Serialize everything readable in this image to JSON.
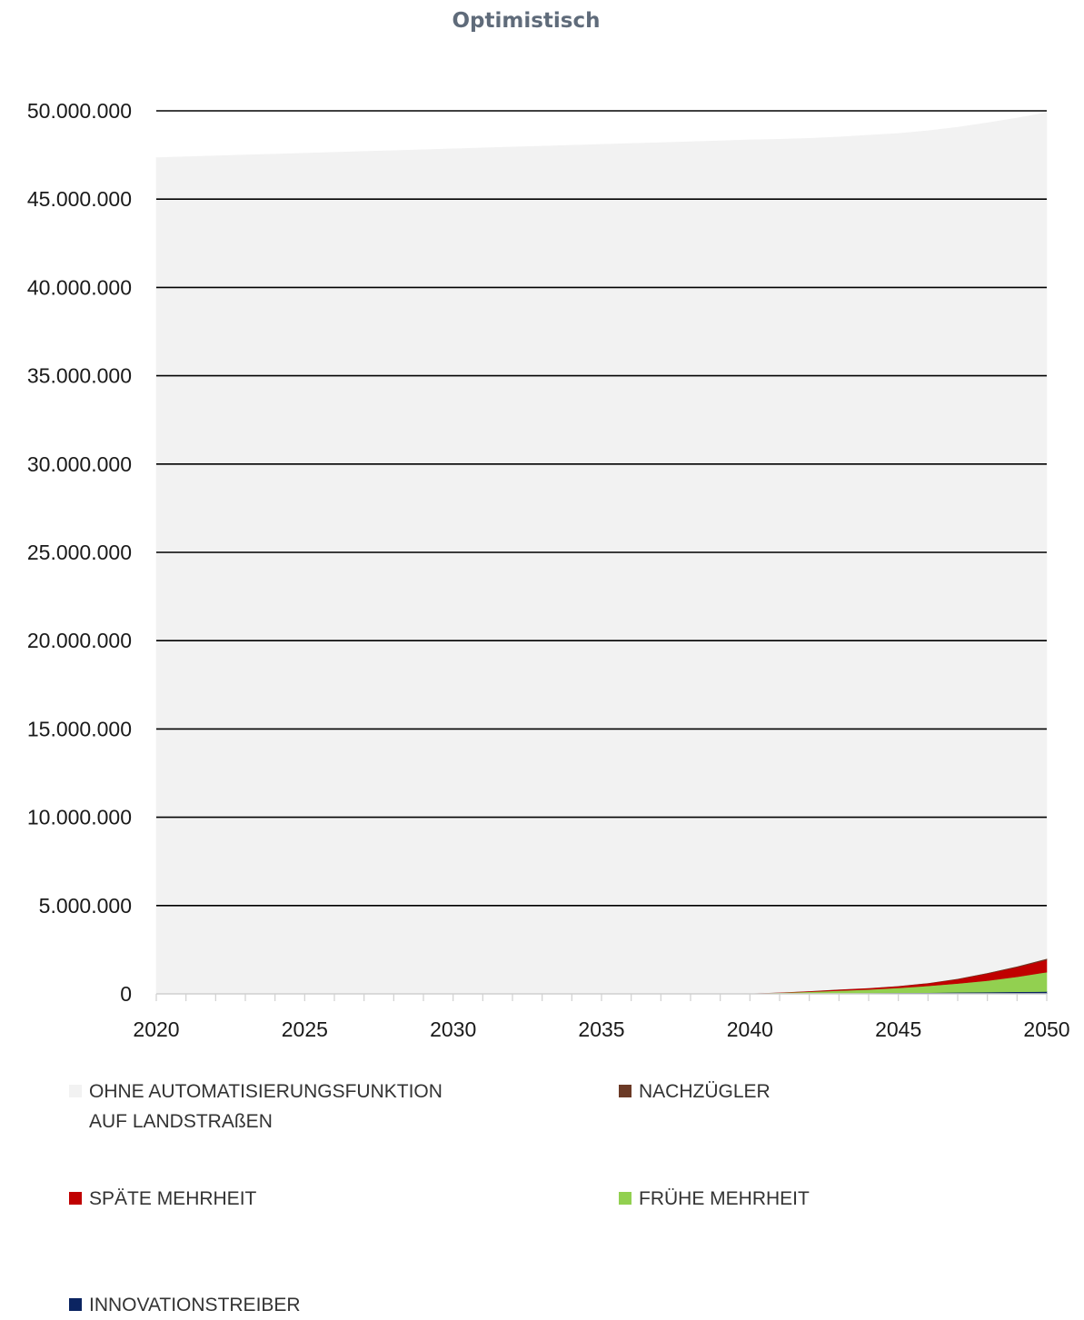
{
  "chart_data": {
    "type": "area",
    "stacked": true,
    "title": "Optimistisch",
    "xlabel": "",
    "ylabel": "",
    "x": [
      2020,
      2021,
      2022,
      2023,
      2024,
      2025,
      2026,
      2027,
      2028,
      2029,
      2030,
      2031,
      2032,
      2033,
      2034,
      2035,
      2036,
      2037,
      2038,
      2039,
      2040,
      2041,
      2042,
      2043,
      2044,
      2045,
      2046,
      2047,
      2048,
      2049,
      2050
    ],
    "x_ticks": [
      "2020",
      "2025",
      "2030",
      "2035",
      "2040",
      "2045",
      "2050"
    ],
    "y_ticks": [
      "0",
      "5.000.000",
      "10.000.000",
      "15.000.000",
      "20.000.000",
      "25.000.000",
      "30.000.000",
      "35.000.000",
      "40.000.000",
      "45.000.000",
      "50.000.000"
    ],
    "ylim": [
      0,
      50000000
    ],
    "xlim": [
      2020,
      2050
    ],
    "grid": true,
    "legend_position": "bottom",
    "series": [
      {
        "name": "INNOVATIONSTREIBER",
        "color": "#0b2461",
        "values": [
          0,
          0,
          0,
          0,
          0,
          0,
          0,
          0,
          0,
          0,
          0,
          0,
          0,
          0,
          0,
          0,
          0,
          0,
          0,
          0,
          10000,
          20000,
          30000,
          40000,
          50000,
          60000,
          70000,
          85000,
          100000,
          115000,
          130000
        ]
      },
      {
        "name": "FRÜHE MEHRHEIT",
        "color": "#92d050",
        "values": [
          0,
          0,
          0,
          0,
          0,
          0,
          0,
          0,
          0,
          0,
          0,
          0,
          0,
          0,
          0,
          0,
          0,
          0,
          0,
          0,
          20000,
          50000,
          90000,
          140000,
          200000,
          280000,
          380000,
          500000,
          650000,
          850000,
          1100000
        ]
      },
      {
        "name": "SPÄTE MEHRHEIT",
        "color": "#c00000",
        "values": [
          0,
          0,
          0,
          0,
          0,
          0,
          0,
          0,
          0,
          0,
          0,
          0,
          0,
          0,
          0,
          0,
          0,
          0,
          0,
          0,
          5000,
          15000,
          40000,
          70000,
          80000,
          100000,
          150000,
          250000,
          400000,
          550000,
          700000
        ]
      },
      {
        "name": "NACHZÜGLER",
        "color": "#6b3a26",
        "values": [
          0,
          0,
          0,
          0,
          0,
          0,
          0,
          0,
          0,
          0,
          0,
          0,
          0,
          0,
          0,
          0,
          0,
          0,
          0,
          0,
          1000,
          2000,
          5000,
          8000,
          10000,
          15000,
          20000,
          30000,
          40000,
          50000,
          70000
        ]
      },
      {
        "name": "OHNE AUTOMATISIERUNGSFUNKTION\nAUF LANDSTRAßEN",
        "color": "#f2f2f2",
        "values": [
          47350000,
          47400000,
          47450000,
          47500000,
          47550000,
          47600000,
          47650000,
          47700000,
          47750000,
          47800000,
          47850000,
          47900000,
          47950000,
          48000000,
          48050000,
          48100000,
          48150000,
          48200000,
          48250000,
          48300000,
          48320000,
          48303000,
          48275000,
          48262000,
          48280000,
          48265000,
          48250000,
          48205000,
          48130000,
          48025000,
          47900000
        ]
      }
    ]
  },
  "legend": {
    "items": [
      {
        "label": "OHNE AUTOMATISIERUNGSFUNKTION\nAUF LANDSTRAßEN",
        "color": "#f2f2f2"
      },
      {
        "label": "NACHZÜGLER",
        "color": "#6b3a26"
      },
      {
        "label": "SPÄTE MEHRHEIT",
        "color": "#c00000"
      },
      {
        "label": "FRÜHE MEHRHEIT",
        "color": "#92d050"
      },
      {
        "label": "INNOVATIONSTREIBER",
        "color": "#0b2461"
      }
    ]
  }
}
